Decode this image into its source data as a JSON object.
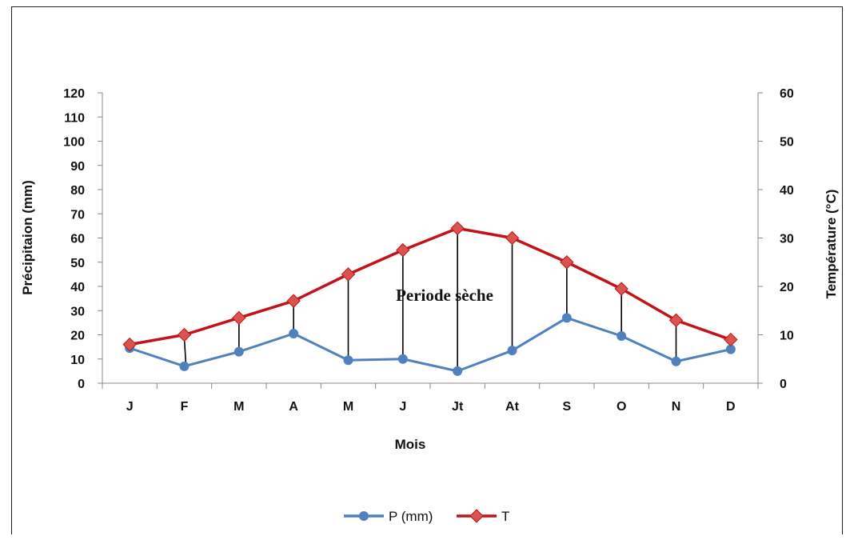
{
  "chart_data": {
    "type": "line",
    "categories": [
      "J",
      "F",
      "M",
      "A",
      "M",
      "J",
      "Jt",
      "At",
      "S",
      "O",
      "N",
      "D"
    ],
    "series": [
      {
        "name": "P (mm)",
        "axis": "left",
        "color": "#4f81bd",
        "marker": "circle",
        "values": [
          14.5,
          7,
          13,
          20.5,
          9.5,
          10,
          5,
          13.5,
          27,
          19.5,
          9,
          14
        ]
      },
      {
        "name": "T",
        "axis": "right",
        "color": "#c0141a",
        "marker": "diamond",
        "values": [
          8,
          10,
          13.5,
          17,
          22.5,
          27.5,
          32,
          30,
          25,
          19.5,
          13,
          9
        ]
      }
    ],
    "xlabel": "Mois",
    "ylabel": "Précipitaion (mm)",
    "y2label": "Température (°C)",
    "ylim": [
      0,
      120
    ],
    "yticks": [
      0,
      10,
      20,
      30,
      40,
      50,
      60,
      70,
      80,
      90,
      100,
      110,
      120
    ],
    "y2lim": [
      0,
      60
    ],
    "y2ticks": [
      0,
      10,
      20,
      30,
      40,
      50,
      60
    ],
    "annotation": "Periode sèche",
    "legend_position": "bottom",
    "grid": false,
    "dry_period_hatch_months": [
      "F",
      "M",
      "A",
      "M",
      "J",
      "Jt",
      "At",
      "S",
      "O",
      "N"
    ]
  }
}
